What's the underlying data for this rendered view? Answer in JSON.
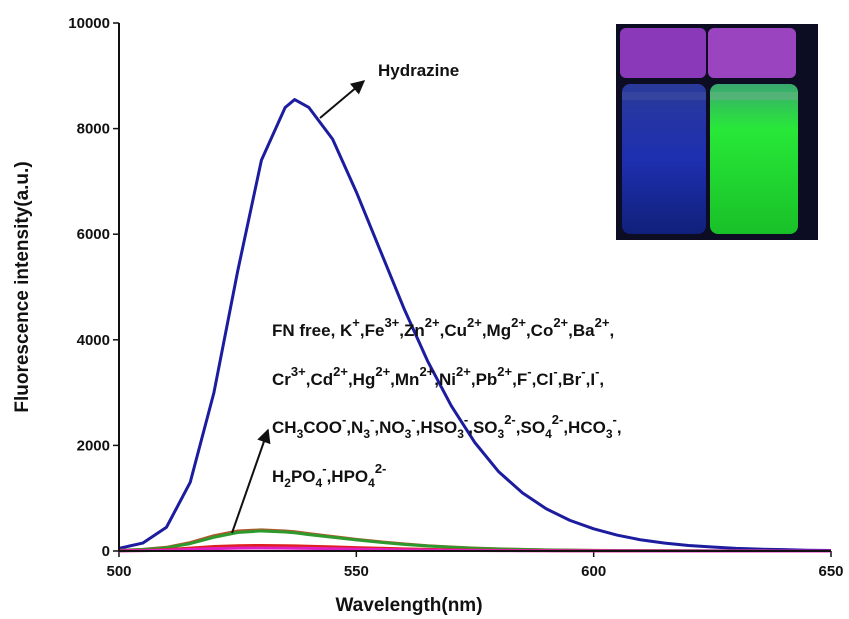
{
  "chart_data": {
    "type": "line",
    "xlabel": "Wavelength(nm)",
    "ylabel": "Fluorescence intensity(a.u.)",
    "xlim": [
      500,
      650
    ],
    "xticks": [
      500,
      550,
      600,
      650
    ],
    "ylim": [
      0,
      10000
    ],
    "yticks": [
      0,
      2000,
      4000,
      6000,
      8000,
      10000
    ],
    "x": [
      500,
      505,
      510,
      515,
      520,
      525,
      530,
      535,
      537,
      540,
      545,
      550,
      555,
      560,
      565,
      570,
      575,
      580,
      585,
      590,
      595,
      600,
      605,
      610,
      615,
      620,
      625,
      630,
      635,
      640,
      645,
      650
    ],
    "series": [
      {
        "color": "#1c1c9e",
        "values": [
          50,
          150,
          450,
          1300,
          3000,
          5300,
          7400,
          8400,
          8550,
          8400,
          7800,
          6800,
          5700,
          4600,
          3600,
          2750,
          2050,
          1500,
          1100,
          800,
          580,
          420,
          300,
          210,
          150,
          105,
          75,
          50,
          35,
          25,
          15,
          10
        ]
      },
      {
        "color": "#b0582c",
        "values": [
          12,
          30,
          70,
          160,
          290,
          380,
          400,
          380,
          365,
          330,
          275,
          220,
          175,
          135,
          100,
          75,
          55,
          40,
          30,
          22,
          16,
          12,
          9,
          7,
          5,
          4,
          3,
          2,
          2,
          1,
          1,
          1
        ]
      },
      {
        "color": "#2e9a2e",
        "values": [
          10,
          25,
          60,
          140,
          260,
          350,
          380,
          360,
          345,
          310,
          260,
          210,
          165,
          125,
          95,
          70,
          50,
          38,
          28,
          20,
          15,
          10,
          8,
          6,
          5,
          4,
          3,
          2,
          2,
          1,
          1,
          1
        ]
      },
      {
        "color": "#e02020",
        "values": [
          5,
          10,
          25,
          55,
          85,
          100,
          105,
          100,
          97,
          90,
          78,
          65,
          52,
          40,
          30,
          22,
          16,
          12,
          9,
          7,
          5,
          4,
          3,
          2,
          2,
          1,
          1,
          1,
          1,
          0,
          0,
          0
        ]
      },
      {
        "color": "#e020c0",
        "values": [
          3,
          6,
          15,
          30,
          45,
          55,
          58,
          55,
          53,
          50,
          43,
          36,
          29,
          22,
          17,
          12,
          9,
          7,
          5,
          4,
          3,
          2,
          2,
          1,
          1,
          1,
          0,
          0,
          0,
          0,
          0,
          0
        ]
      }
    ],
    "hydrazine_label": "Hydrazine",
    "ion_lines": [
      [
        {
          "t": "FN free, K",
          "sup": "+"
        },
        {
          "t": ",Fe",
          "sup": "3+"
        },
        {
          "t": ",Zn",
          "sup": "2+"
        },
        {
          "t": ",Cu",
          "sup": "2+"
        },
        {
          "t": ",Mg",
          "sup": "2+"
        },
        {
          "t": ",Co",
          "sup": "2+"
        },
        {
          "t": ",Ba",
          "sup": "2+"
        },
        {
          "t": ","
        }
      ],
      [
        {
          "t": "Cr",
          "sup": "3+"
        },
        {
          "t": ",Cd",
          "sup": "2+"
        },
        {
          "t": ",Hg",
          "sup": "2+"
        },
        {
          "t": ",Mn",
          "sup": "2+"
        },
        {
          "t": ",Ni",
          "sup": "2+"
        },
        {
          "t": ",Pb",
          "sup": "2+"
        },
        {
          "t": ",F",
          "sup": "-"
        },
        {
          "t": ",Cl",
          "sup": "-"
        },
        {
          "t": ",Br",
          "sup": "-"
        },
        {
          "t": ",I",
          "sup": "-"
        },
        {
          "t": ","
        }
      ],
      [
        {
          "t": "CH",
          "sub": "3"
        },
        {
          "t": "COO",
          "sup": "-"
        },
        {
          "t": ",N",
          "sub": "3",
          "sup": "-"
        },
        {
          "t": ",NO",
          "sub": "3",
          "sup": "-"
        },
        {
          "t": ",HSO",
          "sub": "3",
          "sup": "-"
        },
        {
          "t": ",SO",
          "sub": "3",
          "sup": "2-"
        },
        {
          "t": ",SO",
          "sub": "4",
          "sup": "2-"
        },
        {
          "t": ",HCO",
          "sub": "3",
          "sup": "-"
        },
        {
          "t": ","
        }
      ],
      [
        {
          "t": "H",
          "sub": "2"
        },
        {
          "t": "PO",
          "sub": "4",
          "sup": "-"
        },
        {
          "t": ",HPO",
          "sub": "4",
          "sup": "2-"
        }
      ]
    ]
  }
}
